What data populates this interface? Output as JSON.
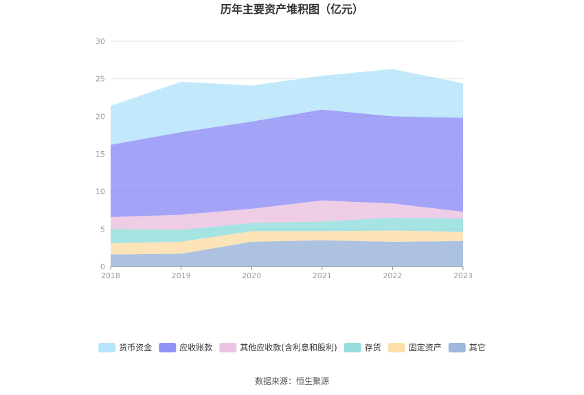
{
  "chart_data": {
    "type": "area",
    "stacked": true,
    "title": "历年主要资产堆积图（亿元）",
    "xlabel": "",
    "ylabel": "",
    "categories": [
      "2018",
      "2019",
      "2020",
      "2021",
      "2022",
      "2023"
    ],
    "ylim": [
      0,
      30
    ],
    "yticks": [
      0,
      5,
      10,
      15,
      20,
      25,
      30
    ],
    "grid": true,
    "legend_position": "bottom",
    "series": [
      {
        "name": "其它",
        "color": "#8eaad6",
        "values": [
          1.6,
          1.7,
          3.3,
          3.5,
          3.3,
          3.4
        ]
      },
      {
        "name": "固定资产",
        "color": "#fcd99c",
        "values": [
          1.5,
          1.6,
          1.4,
          1.2,
          1.5,
          1.2
        ]
      },
      {
        "name": "存货",
        "color": "#84d8d8",
        "values": [
          1.9,
          1.6,
          1.1,
          1.3,
          1.7,
          1.8
        ]
      },
      {
        "name": "其他应收款(含利息和股利)",
        "color": "#e9bade",
        "values": [
          1.6,
          2.0,
          1.9,
          2.8,
          1.9,
          0.9
        ]
      },
      {
        "name": "应收账款",
        "color": "#7f80f4",
        "values": [
          9.6,
          11.0,
          11.6,
          12.1,
          11.6,
          12.5
        ]
      },
      {
        "name": "货币资金",
        "color": "#a9e1fa",
        "values": [
          5.2,
          6.7,
          4.8,
          4.5,
          6.3,
          4.6
        ]
      }
    ],
    "legend_order": [
      "货币资金",
      "应收账款",
      "其他应收款(含利息和股利)",
      "存货",
      "固定资产",
      "其它"
    ]
  },
  "footer": {
    "source": "数据来源：恒生聚源"
  }
}
